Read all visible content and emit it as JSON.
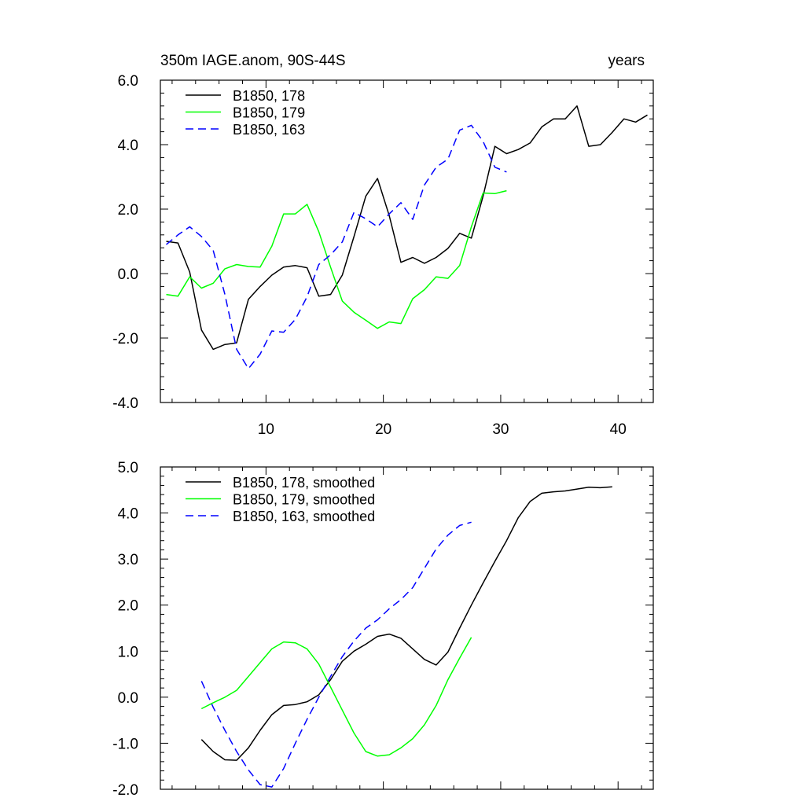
{
  "figure": {
    "title_left": "350m IAGE.anom, 90S-44S",
    "title_right": "years"
  },
  "chart_data": [
    {
      "type": "line",
      "title": "350m IAGE.anom, 90S-44S",
      "xlabel": "",
      "ylabel": "",
      "xlim": [
        1,
        43
      ],
      "ylim": [
        -4,
        6
      ],
      "x_ticks": [
        10,
        20,
        30,
        40
      ],
      "x_tick_labels": [
        "10",
        "20",
        "30",
        "40"
      ],
      "y_ticks": [
        -4,
        -2,
        0,
        2,
        4,
        6
      ],
      "y_tick_labels": [
        "-4.0",
        "-2.0",
        "0.0",
        "2.0",
        "4.0",
        "6.0"
      ],
      "legend_position": "top-left",
      "grid": false,
      "series": [
        {
          "name": "B1850, 178",
          "color": "#000000",
          "dash": "solid",
          "x": [
            1.5,
            2.5,
            3.5,
            4.5,
            5.5,
            6.5,
            7.5,
            8.5,
            9.5,
            10.5,
            11.5,
            12.5,
            13.5,
            14.5,
            15.5,
            16.5,
            17.5,
            18.5,
            19.5,
            20.5,
            21.5,
            22.5,
            23.5,
            24.5,
            25.5,
            26.5,
            27.5,
            28.5,
            29.5,
            30.5,
            31.5,
            32.5,
            33.5,
            34.5,
            35.5,
            36.5,
            37.5,
            38.5,
            39.5,
            40.5,
            41.5,
            42.5
          ],
          "y": [
            1.0,
            0.95,
            0.05,
            -1.75,
            -2.35,
            -2.2,
            -2.15,
            -0.8,
            -0.4,
            -0.05,
            0.2,
            0.25,
            0.18,
            -0.7,
            -0.65,
            -0.05,
            1.15,
            2.4,
            2.95,
            1.8,
            0.35,
            0.5,
            0.32,
            0.5,
            0.78,
            1.25,
            1.1,
            2.4,
            3.95,
            3.72,
            3.85,
            4.05,
            4.55,
            4.8,
            4.8,
            5.2,
            3.95,
            4.0,
            4.38,
            4.8,
            4.7,
            4.92
          ]
        },
        {
          "name": "B1850, 179",
          "color": "#00ff00",
          "dash": "solid",
          "x": [
            1.5,
            2.5,
            3.5,
            4.5,
            5.5,
            6.5,
            7.5,
            8.5,
            9.5,
            10.5,
            11.5,
            12.5,
            13.5,
            14.5,
            15.5,
            16.5,
            17.5,
            18.5,
            19.5,
            20.5,
            21.5,
            22.5,
            23.5,
            24.5,
            25.5,
            26.5,
            27.5,
            28.5,
            29.5,
            30.5
          ],
          "y": [
            -0.65,
            -0.7,
            -0.1,
            -0.45,
            -0.3,
            0.15,
            0.28,
            0.22,
            0.2,
            0.85,
            1.85,
            1.85,
            2.15,
            1.3,
            0.2,
            -0.85,
            -1.2,
            -1.45,
            -1.7,
            -1.5,
            -1.55,
            -0.78,
            -0.5,
            -0.1,
            -0.15,
            0.25,
            1.45,
            2.5,
            2.48,
            2.57
          ]
        },
        {
          "name": "B1850, 163",
          "color": "#0000ff",
          "dash": "dashed",
          "x": [
            1.5,
            2.5,
            3.5,
            4.5,
            5.5,
            6.5,
            7.5,
            8.5,
            9.5,
            10.5,
            11.5,
            12.5,
            13.5,
            14.5,
            15.5,
            16.5,
            17.5,
            18.5,
            19.5,
            20.5,
            21.5,
            22.5,
            23.5,
            24.5,
            25.5,
            26.5,
            27.5,
            28.5,
            29.5,
            30.5
          ],
          "y": [
            0.9,
            1.2,
            1.45,
            1.15,
            0.72,
            -0.65,
            -2.35,
            -2.95,
            -2.5,
            -1.78,
            -1.82,
            -1.42,
            -0.72,
            0.28,
            0.58,
            0.98,
            1.9,
            1.7,
            1.45,
            1.85,
            2.2,
            1.68,
            2.75,
            3.3,
            3.55,
            4.45,
            4.6,
            4.1,
            3.3,
            3.15
          ]
        }
      ]
    },
    {
      "type": "line",
      "title": "",
      "xlabel": "",
      "ylabel": "",
      "xlim": [
        1,
        43
      ],
      "ylim": [
        -2,
        5
      ],
      "x_ticks": [
        10,
        20,
        30,
        40
      ],
      "x_tick_labels": [],
      "y_ticks": [
        -2,
        -1,
        0,
        1,
        2,
        3,
        4,
        5
      ],
      "y_tick_labels": [
        "-2.0",
        "-1.0",
        "0.0",
        "1.0",
        "2.0",
        "3.0",
        "4.0",
        "5.0"
      ],
      "legend_position": "top-left",
      "grid": false,
      "series": [
        {
          "name": "B1850, 178, smoothed",
          "color": "#000000",
          "dash": "solid",
          "x": [
            4.5,
            5.5,
            6.5,
            7.5,
            8.5,
            9.5,
            10.5,
            11.5,
            12.5,
            13.5,
            14.5,
            15.5,
            16.5,
            17.5,
            18.5,
            19.5,
            20.5,
            21.5,
            22.5,
            23.5,
            24.5,
            25.5,
            26.5,
            27.5,
            28.5,
            29.5,
            30.5,
            31.5,
            32.5,
            33.5,
            34.5,
            35.5,
            36.5,
            37.5,
            38.5,
            39.5
          ],
          "y": [
            -0.92,
            -1.18,
            -1.36,
            -1.37,
            -1.1,
            -0.72,
            -0.38,
            -0.18,
            -0.16,
            -0.1,
            0.05,
            0.38,
            0.78,
            1.0,
            1.15,
            1.32,
            1.37,
            1.28,
            1.05,
            0.82,
            0.7,
            0.98,
            1.5,
            2.0,
            2.48,
            2.95,
            3.4,
            3.9,
            4.25,
            4.43,
            4.46,
            4.48,
            4.52,
            4.56,
            4.55,
            4.57
          ]
        },
        {
          "name": "B1850, 179, smoothed",
          "color": "#00ff00",
          "dash": "solid",
          "x": [
            4.5,
            5.5,
            6.5,
            7.5,
            8.5,
            9.5,
            10.5,
            11.5,
            12.5,
            13.5,
            14.5,
            15.5,
            16.5,
            17.5,
            18.5,
            19.5,
            20.5,
            21.5,
            22.5,
            23.5,
            24.5,
            25.5,
            26.5,
            27.5
          ],
          "y": [
            -0.25,
            -0.12,
            0.0,
            0.15,
            0.45,
            0.75,
            1.05,
            1.2,
            1.18,
            1.05,
            0.72,
            0.22,
            -0.28,
            -0.78,
            -1.18,
            -1.28,
            -1.25,
            -1.1,
            -0.9,
            -0.6,
            -0.18,
            0.38,
            0.85,
            1.3
          ]
        },
        {
          "name": "B1850, 163, smoothed",
          "color": "#0000ff",
          "dash": "dashed",
          "x": [
            4.5,
            5.5,
            6.5,
            7.5,
            8.5,
            9.5,
            10.5,
            11.5,
            12.5,
            13.5,
            14.5,
            15.5,
            16.5,
            17.5,
            18.5,
            19.5,
            20.5,
            21.5,
            22.5,
            23.5,
            24.5,
            25.5,
            26.5,
            27.5
          ],
          "y": [
            0.35,
            -0.22,
            -0.72,
            -1.18,
            -1.58,
            -1.9,
            -1.95,
            -1.55,
            -1.0,
            -0.48,
            0.0,
            0.45,
            0.88,
            1.22,
            1.5,
            1.68,
            1.92,
            2.12,
            2.38,
            2.8,
            3.22,
            3.52,
            3.73,
            3.8
          ]
        }
      ]
    }
  ]
}
